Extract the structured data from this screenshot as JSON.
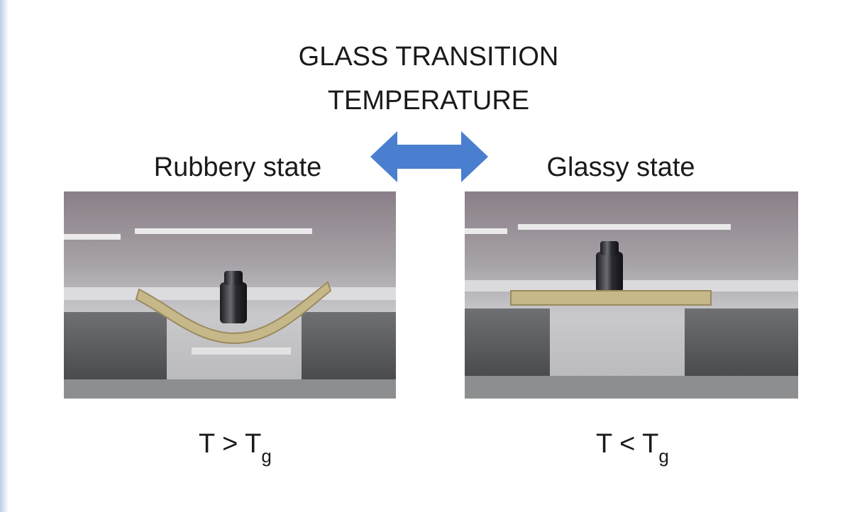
{
  "title": {
    "lines": [
      "GLASS TRANSITION",
      "TEMPERATURE"
    ]
  },
  "panels": [
    {
      "label": "Rubbery state",
      "condition": {
        "text": "T > T",
        "subscript": "g"
      }
    },
    {
      "label": "Glassy state",
      "condition": {
        "text": "T < T",
        "subscript": "g"
      }
    }
  ]
}
